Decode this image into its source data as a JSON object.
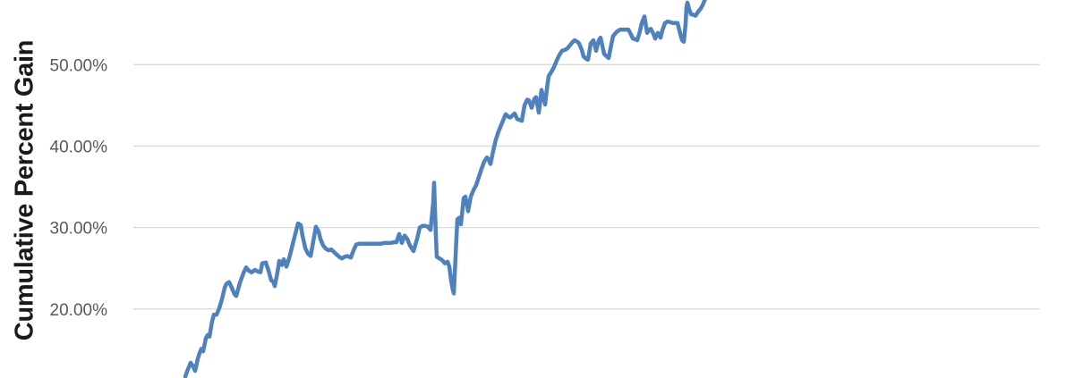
{
  "colors": {
    "line": "#4F81BD",
    "gridline": "#D9D9D9",
    "tick_text": "#595959",
    "axis_title_text": "#1A1A1A",
    "background": "#FFFFFF"
  },
  "chart_data": {
    "type": "line",
    "title": "",
    "xlabel": "",
    "ylabel": "Cumulative Percent Gain",
    "legend": "none",
    "grid": "horizontal",
    "y_ticks_visible": [
      "50.00%",
      "40.00%",
      "30.00%",
      "20.00%"
    ],
    "y_tick_values": [
      50,
      40,
      30,
      20
    ],
    "ylim_visible_pct": [
      11.6,
      57.9
    ],
    "x_axis_note": "x axis labels cropped out of view; x given as horizontal pixel position",
    "series": [
      {
        "name": "Cumulative Percent Gain",
        "points": [
          [
            207,
            11.7
          ],
          [
            210,
            12.6
          ],
          [
            213,
            13.4
          ],
          [
            216,
            12.9
          ],
          [
            218,
            12.4
          ],
          [
            221,
            13.9
          ],
          [
            223,
            14.6
          ],
          [
            225,
            15.1
          ],
          [
            227,
            14.8
          ],
          [
            230,
            16.4
          ],
          [
            232,
            16.8
          ],
          [
            234,
            16.6
          ],
          [
            237,
            18.5
          ],
          [
            239,
            19.3
          ],
          [
            242,
            19.3
          ],
          [
            245,
            20.1
          ],
          [
            248,
            21.2
          ],
          [
            251,
            22.6
          ],
          [
            253,
            23.1
          ],
          [
            256,
            23.3
          ],
          [
            259,
            22.6
          ],
          [
            262,
            21.8
          ],
          [
            264,
            21.6
          ],
          [
            268,
            23.2
          ],
          [
            272,
            24.4
          ],
          [
            275,
            25.1
          ],
          [
            278,
            24.7
          ],
          [
            281,
            24.5
          ],
          [
            285,
            24.8
          ],
          [
            288,
            24.6
          ],
          [
            291,
            24.5
          ],
          [
            293,
            25.6
          ],
          [
            297,
            25.7
          ],
          [
            300,
            24.7
          ],
          [
            303,
            23.5
          ],
          [
            305,
            23.4
          ],
          [
            307,
            22.8
          ],
          [
            310,
            24.5
          ],
          [
            312,
            25.9
          ],
          [
            315,
            25.4
          ],
          [
            317,
            26.1
          ],
          [
            320,
            25.2
          ],
          [
            323,
            26.2
          ],
          [
            326,
            27.5
          ],
          [
            329,
            28.8
          ],
          [
            333,
            30.5
          ],
          [
            336,
            30.3
          ],
          [
            338,
            29.0
          ],
          [
            341,
            27.5
          ],
          [
            344,
            26.8
          ],
          [
            347,
            26.5
          ],
          [
            350,
            28.3
          ],
          [
            353,
            30.1
          ],
          [
            356,
            29.5
          ],
          [
            358,
            28.6
          ],
          [
            361,
            27.8
          ],
          [
            364,
            27.4
          ],
          [
            367,
            27.2
          ],
          [
            370,
            27.3
          ],
          [
            373,
            27.0
          ],
          [
            376,
            26.7
          ],
          [
            379,
            26.4
          ],
          [
            382,
            26.2
          ],
          [
            385,
            26.4
          ],
          [
            388,
            26.5
          ],
          [
            390,
            26.4
          ],
          [
            392,
            26.3
          ],
          [
            395,
            27.2
          ],
          [
            398,
            27.9
          ],
          [
            401,
            28.0
          ],
          [
            405,
            28.0
          ],
          [
            409,
            28.0
          ],
          [
            413,
            28.0
          ],
          [
            417,
            28.0
          ],
          [
            421,
            28.0
          ],
          [
            425,
            28.0
          ],
          [
            429,
            28.1
          ],
          [
            433,
            28.1
          ],
          [
            437,
            28.1
          ],
          [
            440,
            28.2
          ],
          [
            443,
            28.2
          ],
          [
            446,
            29.2
          ],
          [
            449,
            28.1
          ],
          [
            452,
            29.0
          ],
          [
            455,
            28.6
          ],
          [
            458,
            27.8
          ],
          [
            462,
            27.1
          ],
          [
            466,
            28.6
          ],
          [
            469,
            30.0
          ],
          [
            472,
            30.2
          ],
          [
            475,
            30.2
          ],
          [
            478,
            30.1
          ],
          [
            481,
            29.7
          ],
          [
            484,
            33.0
          ],
          [
            485,
            35.5
          ],
          [
            487,
            29.0
          ],
          [
            488,
            26.4
          ],
          [
            491,
            26.2
          ],
          [
            494,
            26.0
          ],
          [
            497,
            25.6
          ],
          [
            500,
            25.8
          ],
          [
            502,
            25.2
          ],
          [
            504,
            23.5
          ],
          [
            506,
            22.3
          ],
          [
            507,
            21.9
          ],
          [
            509,
            26.5
          ],
          [
            511,
            31.0
          ],
          [
            513,
            31.2
          ],
          [
            515,
            30.4
          ],
          [
            518,
            33.6
          ],
          [
            520,
            33.8
          ],
          [
            523,
            32.0
          ],
          [
            526,
            33.8
          ],
          [
            529,
            34.6
          ],
          [
            532,
            35.2
          ],
          [
            535,
            36.2
          ],
          [
            538,
            37.2
          ],
          [
            541,
            38.1
          ],
          [
            544,
            38.6
          ],
          [
            546,
            38.3
          ],
          [
            548,
            37.8
          ],
          [
            551,
            39.4
          ],
          [
            554,
            40.8
          ],
          [
            557,
            41.8
          ],
          [
            560,
            42.6
          ],
          [
            563,
            43.4
          ],
          [
            565,
            43.9
          ],
          [
            568,
            43.6
          ],
          [
            570,
            43.5
          ],
          [
            573,
            43.8
          ],
          [
            575,
            44.0
          ],
          [
            578,
            43.3
          ],
          [
            581,
            43.2
          ],
          [
            583,
            43.1
          ],
          [
            586,
            45.0
          ],
          [
            589,
            45.7
          ],
          [
            591,
            45.6
          ],
          [
            594,
            44.7
          ],
          [
            597,
            45.8
          ],
          [
            599,
            46.0
          ],
          [
            602,
            44.1
          ],
          [
            605,
            46.9
          ],
          [
            607,
            46.0
          ],
          [
            609,
            45.1
          ],
          [
            611,
            47.0
          ],
          [
            613,
            48.6
          ],
          [
            616,
            49.1
          ],
          [
            619,
            49.7
          ],
          [
            622,
            50.5
          ],
          [
            625,
            51.2
          ],
          [
            628,
            51.7
          ],
          [
            631,
            51.8
          ],
          [
            634,
            52.0
          ],
          [
            637,
            52.4
          ],
          [
            640,
            52.8
          ],
          [
            642,
            53.0
          ],
          [
            645,
            52.8
          ],
          [
            647,
            52.6
          ],
          [
            650,
            51.8
          ],
          [
            652,
            51.0
          ],
          [
            655,
            50.7
          ],
          [
            657,
            50.6
          ],
          [
            660,
            52.6
          ],
          [
            663,
            53.0
          ],
          [
            666,
            51.7
          ],
          [
            669,
            53.0
          ],
          [
            671,
            53.3
          ],
          [
            673,
            52.3
          ],
          [
            675,
            51.3
          ],
          [
            678,
            51.0
          ],
          [
            680,
            50.8
          ],
          [
            683,
            52.5
          ],
          [
            685,
            53.5
          ],
          [
            688,
            53.9
          ],
          [
            690,
            54.1
          ],
          [
            693,
            54.3
          ],
          [
            696,
            54.3
          ],
          [
            699,
            54.3
          ],
          [
            702,
            54.3
          ],
          [
            705,
            53.7
          ],
          [
            707,
            53.2
          ],
          [
            710,
            53.1
          ],
          [
            712,
            53.0
          ],
          [
            715,
            54.1
          ],
          [
            717,
            55.1
          ],
          [
            720,
            55.9
          ],
          [
            723,
            53.9
          ],
          [
            725,
            54.2
          ],
          [
            727,
            54.4
          ],
          [
            730,
            53.8
          ],
          [
            732,
            53.2
          ],
          [
            735,
            53.9
          ],
          [
            738,
            53.3
          ],
          [
            740,
            54.2
          ],
          [
            743,
            55.1
          ],
          [
            746,
            55.3
          ],
          [
            749,
            55.2
          ],
          [
            752,
            55.1
          ],
          [
            755,
            55.1
          ],
          [
            757,
            55.1
          ],
          [
            760,
            53.8
          ],
          [
            762,
            53.0
          ],
          [
            764,
            52.8
          ],
          [
            766,
            55.0
          ],
          [
            767,
            57.1
          ],
          [
            768,
            57.6
          ],
          [
            770,
            56.8
          ],
          [
            772,
            56.2
          ],
          [
            775,
            56.1
          ],
          [
            777,
            56.0
          ],
          [
            780,
            56.5
          ],
          [
            783,
            56.9
          ],
          [
            785,
            57.3
          ],
          [
            788,
            58.1
          ]
        ]
      }
    ]
  }
}
